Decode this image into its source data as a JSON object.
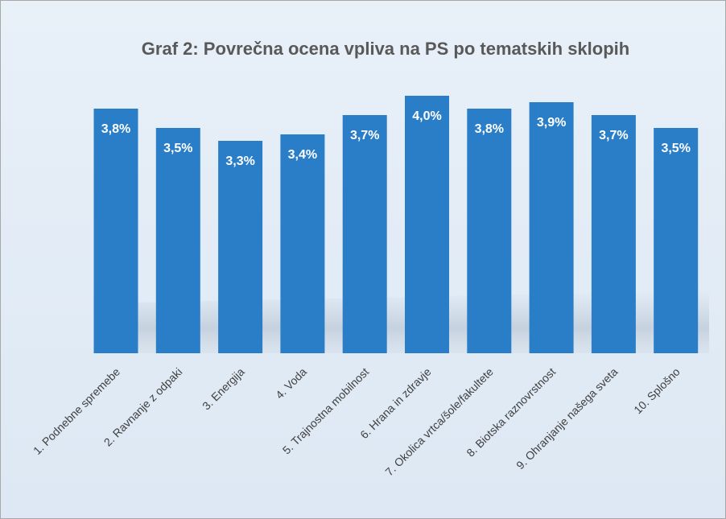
{
  "chart_data": {
    "type": "bar",
    "title": "Graf 2: Povrečna ocena vpliva na PS po tematskih sklopih",
    "xlabel": "",
    "ylabel": "",
    "categories": [
      "1. Podnebne spremebe",
      "2. Ravnanje z odpaki",
      "3. Energija",
      "4. Voda",
      "5. Trajnostna mobilnost",
      "6. Hrana in zdravje",
      "7. Okolica vrtca/šole/fakultete",
      "8. Biotska raznovrstnost",
      "9. Ohranjanje našega sveta",
      "10. Splošno"
    ],
    "values": [
      3.8,
      3.5,
      3.3,
      3.4,
      3.7,
      4.0,
      3.8,
      3.9,
      3.7,
      3.5
    ],
    "data_labels": [
      "3,8%",
      "3,5%",
      "3,3%",
      "3,4%",
      "3,7%",
      "4,0%",
      "3,8%",
      "3,9%",
      "3,7%",
      "3,5%"
    ],
    "ylim": [
      0,
      4.0
    ],
    "grid": false,
    "legend": "none",
    "bar_color": "#2a7ec8",
    "background_color": "#e3ecf6"
  }
}
